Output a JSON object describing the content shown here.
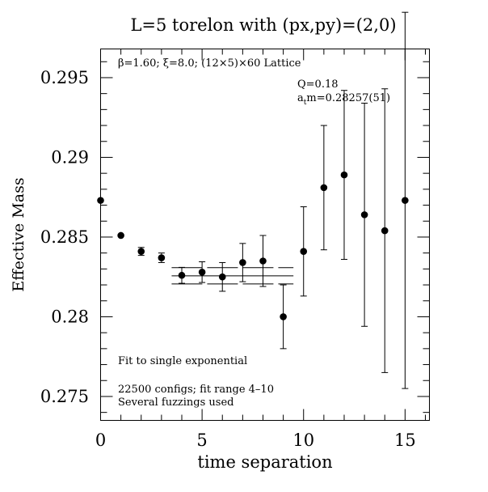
{
  "chart_data": {
    "type": "scatter",
    "title": "L=5 torelon with (px,py)=(2,0)",
    "xlabel": "time separation",
    "ylabel": "Effective Mass",
    "xlim": [
      0,
      16.2
    ],
    "ylim": [
      0.2735,
      0.2968
    ],
    "xticks": [
      0,
      5,
      10,
      15
    ],
    "xtick_labels": [
      "0",
      "5",
      "10",
      "15"
    ],
    "yticks": [
      0.275,
      0.28,
      0.285,
      0.29,
      0.295
    ],
    "ytick_labels": [
      "0.275",
      "0.28",
      "0.285",
      "0.29",
      "0.295"
    ],
    "grid": false,
    "legend": "none",
    "annotations": {
      "lattice": "β=1.60; ξ=8.0; (12×5)×60 Lattice",
      "q": "Q=0.18",
      "mass_prefix": "a",
      "mass_sub": "t",
      "mass_rest": "m=0.28257(51)",
      "fit": "Fit to single exponential",
      "configs": "22500 configs; fit range 4–10",
      "fuzz": "Several fuzzings used"
    },
    "points": [
      {
        "x": 0,
        "y": 0.2873,
        "err": 0
      },
      {
        "x": 1,
        "y": 0.2851,
        "err": 0
      },
      {
        "x": 2,
        "y": 0.2841,
        "err": 0.00025
      },
      {
        "x": 3,
        "y": 0.2837,
        "err": 0.0003
      },
      {
        "x": 4,
        "y": 0.2826,
        "err": 0.0005
      },
      {
        "x": 5,
        "y": 0.2828,
        "err": 0.00065
      },
      {
        "x": 6,
        "y": 0.2825,
        "err": 0.0009
      },
      {
        "x": 7,
        "y": 0.2834,
        "err": 0.0012
      },
      {
        "x": 8,
        "y": 0.2835,
        "err": 0.0016
      },
      {
        "x": 9,
        "y": 0.28,
        "err": 0.002
      },
      {
        "x": 10,
        "y": 0.2841,
        "err": 0.0028
      },
      {
        "x": 11,
        "y": 0.2881,
        "err": 0.0039
      },
      {
        "x": 12,
        "y": 0.2889,
        "err": 0.0053
      },
      {
        "x": 13,
        "y": 0.2864,
        "err": 0.007
      },
      {
        "x": 14,
        "y": 0.2854,
        "err": 0.0089
      },
      {
        "x": 15,
        "y": 0.2873,
        "err": 0.0118
      }
    ],
    "fit": {
      "x_start": 3.5,
      "x_end": 9.5,
      "value": 0.28257,
      "error": 0.00051
    }
  }
}
